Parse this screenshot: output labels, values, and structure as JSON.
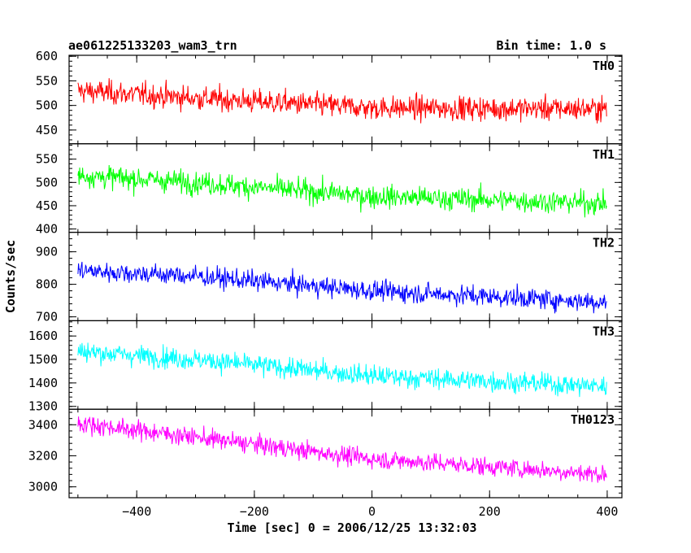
{
  "chart_data": {
    "type": "line",
    "title": "ae061225133203_wam3_trn",
    "subtitle": "Bin time: 1.0 s",
    "xlabel": "Time [sec] 0 = 2006/12/25 13:32:03",
    "ylabel": "Counts/sec",
    "xlim": [
      -515,
      425
    ],
    "xticks": [
      -400,
      -200,
      0,
      200,
      400
    ],
    "x_start": -500,
    "x_end": 399,
    "grid": false,
    "panels": [
      {
        "name": "TH0",
        "color": "#ff0000",
        "ylim": [
          422,
          602
        ],
        "yticks": [
          450,
          500,
          550,
          600
        ],
        "trend": [
          [
            -500,
            530
          ],
          [
            -300,
            515
          ],
          [
            0,
            495
          ],
          [
            400,
            493
          ]
        ],
        "noise": 22
      },
      {
        "name": "TH1",
        "color": "#00ff00",
        "ylim": [
          393,
          583
        ],
        "yticks": [
          400,
          450,
          500,
          550
        ],
        "trend": [
          [
            -500,
            515
          ],
          [
            -300,
            500
          ],
          [
            0,
            470
          ],
          [
            400,
            455
          ]
        ],
        "noise": 22
      },
      {
        "name": "TH2",
        "color": "#0000ff",
        "ylim": [
          688,
          960
        ],
        "yticks": [
          700,
          800,
          900
        ],
        "trend": [
          [
            -500,
            842
          ],
          [
            -300,
            825
          ],
          [
            0,
            780
          ],
          [
            400,
            745
          ]
        ],
        "noise": 28
      },
      {
        "name": "TH3",
        "color": "#00ffff",
        "ylim": [
          1288,
          1665
        ],
        "yticks": [
          1300,
          1400,
          1500,
          1600
        ],
        "trend": [
          [
            -500,
            1535
          ],
          [
            -300,
            1500
          ],
          [
            0,
            1430
          ],
          [
            400,
            1385
          ]
        ],
        "noise": 40
      },
      {
        "name": "TH0123",
        "color": "#ff00ff",
        "ylim": [
          2930,
          3500
        ],
        "yticks": [
          3000,
          3200,
          3400
        ],
        "trend": [
          [
            -500,
            3410
          ],
          [
            -300,
            3320
          ],
          [
            0,
            3180
          ],
          [
            400,
            3080
          ]
        ],
        "noise": 55
      }
    ]
  }
}
